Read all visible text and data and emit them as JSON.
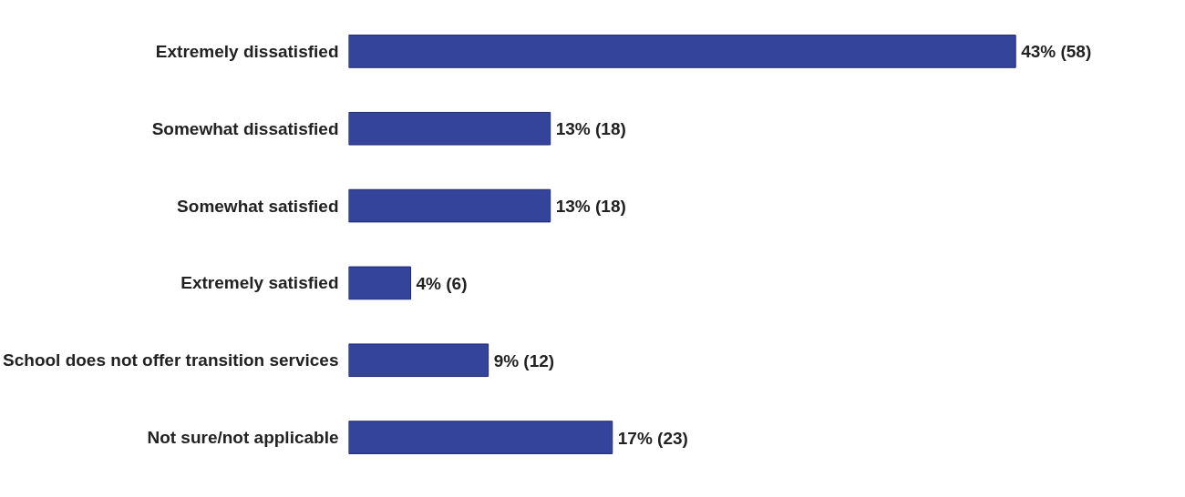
{
  "chart_data": {
    "type": "bar",
    "orientation": "horizontal",
    "categories": [
      "Extremely dissatisfied",
      "Somewhat dissatisfied",
      "Somewhat satisfied",
      "Extremely satisfied",
      "School does not offer transition services",
      "Not sure/not applicable"
    ],
    "values": [
      43,
      13,
      13,
      4,
      9,
      17
    ],
    "value_labels": [
      "43% (58)",
      "13% (18)",
      "13% (18)",
      "4% (6)",
      "9% (12)",
      "17% (23)"
    ],
    "color": "#35449b",
    "tick_labels": "y"
  }
}
